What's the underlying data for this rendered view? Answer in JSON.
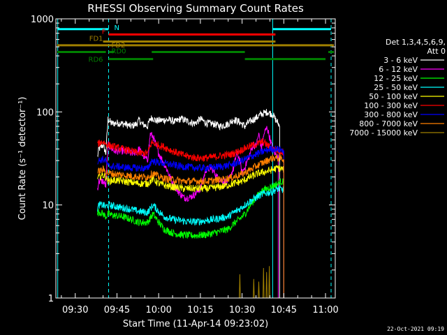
{
  "chart_data": {
    "type": "line",
    "title": "RHESSI Observing Summary Count Rates",
    "xlabel": "Start Time (11-Apr-14 09:23:02)",
    "ylabel": "Count Rate (s⁻¹ detector⁻¹)",
    "x_start_time": "09:23:02",
    "x_ticks": [
      "09:30",
      "09:45",
      "10:00",
      "10:15",
      "10:30",
      "10:45",
      "11:00"
    ],
    "x_tick_minutes": [
      570,
      585,
      600,
      615,
      630,
      645,
      660
    ],
    "xlim_minutes": [
      563.03,
      663.5
    ],
    "ylim": [
      1,
      1000
    ],
    "y_scale": "log",
    "y_ticks": [
      "1",
      "10",
      "100",
      "1000"
    ],
    "y_tick_values": [
      1,
      10,
      100,
      1000
    ],
    "legend": {
      "title_line1": "Det 1,3,4,5,6,9,",
      "title_line2": "Att 0",
      "placement": "right"
    },
    "series": [
      {
        "name": "3 - 6 keV",
        "color": "#ffffff",
        "points": [
          [
            578,
            33
          ],
          [
            578.5,
            40
          ],
          [
            580,
            44
          ],
          [
            581,
            36
          ],
          [
            581.8,
            84
          ],
          [
            583,
            75
          ],
          [
            585,
            76
          ],
          [
            588,
            74
          ],
          [
            590,
            70
          ],
          [
            592,
            74
          ],
          [
            593,
            82
          ],
          [
            594,
            74
          ],
          [
            596,
            70
          ],
          [
            597,
            85
          ],
          [
            598,
            86
          ],
          [
            599,
            80
          ],
          [
            602,
            82
          ],
          [
            604,
            82
          ],
          [
            606,
            78
          ],
          [
            608,
            85
          ],
          [
            610,
            80
          ],
          [
            613,
            75
          ],
          [
            615,
            84
          ],
          [
            617,
            76
          ],
          [
            620,
            74
          ],
          [
            622,
            70
          ],
          [
            625,
            74
          ],
          [
            627,
            83
          ],
          [
            629,
            78
          ],
          [
            631,
            70
          ],
          [
            632,
            76
          ],
          [
            635,
            86
          ],
          [
            636.5,
            93
          ],
          [
            639,
            100
          ],
          [
            640,
            97
          ],
          [
            641,
            94
          ],
          [
            642,
            83
          ],
          [
            643,
            75
          ],
          [
            643.5,
            70
          ]
        ]
      },
      {
        "name": "6 - 12 keV",
        "color": "#ff00ff",
        "points": [
          [
            578,
            15
          ],
          [
            578.5,
            18
          ],
          [
            580,
            18
          ],
          [
            581,
            16
          ],
          [
            581.8,
            44
          ],
          [
            584,
            38
          ],
          [
            587,
            38
          ],
          [
            590,
            36
          ],
          [
            592,
            37
          ],
          [
            593,
            40
          ],
          [
            594,
            35
          ],
          [
            596,
            30
          ],
          [
            597,
            58
          ],
          [
            598,
            54
          ],
          [
            600,
            36
          ],
          [
            603,
            24
          ],
          [
            605,
            17
          ],
          [
            607,
            14
          ],
          [
            609,
            12
          ],
          [
            611,
            12
          ],
          [
            613,
            13
          ],
          [
            615,
            15
          ],
          [
            617,
            24
          ],
          [
            619,
            25
          ],
          [
            621,
            20
          ],
          [
            623,
            18
          ],
          [
            625,
            18
          ],
          [
            627,
            25
          ],
          [
            628,
            36
          ],
          [
            629,
            32
          ],
          [
            630,
            22
          ],
          [
            632,
            30
          ],
          [
            634,
            45
          ],
          [
            635,
            42
          ],
          [
            636,
            58
          ],
          [
            637,
            40
          ],
          [
            638,
            60
          ],
          [
            639,
            68
          ],
          [
            640,
            52
          ],
          [
            641,
            40
          ],
          [
            642,
            35
          ],
          [
            643,
            33
          ]
        ]
      },
      {
        "name": "12 - 25 keV",
        "color": "#00ff00",
        "points": [
          [
            578,
            8
          ],
          [
            578.5,
            8.5
          ],
          [
            580,
            8
          ],
          [
            581,
            7.5
          ],
          [
            581.8,
            8
          ],
          [
            584,
            7.7
          ],
          [
            587,
            7.5
          ],
          [
            590,
            7
          ],
          [
            593,
            6.5
          ],
          [
            596,
            6.5
          ],
          [
            598,
            8
          ],
          [
            600,
            6.5
          ],
          [
            602,
            5.5
          ],
          [
            605,
            5
          ],
          [
            608,
            4.8
          ],
          [
            611,
            4.7
          ],
          [
            614,
            4.7
          ],
          [
            617,
            4.8
          ],
          [
            620,
            5
          ],
          [
            623,
            5.3
          ],
          [
            625,
            5.5
          ],
          [
            627,
            6.3
          ],
          [
            629,
            7
          ],
          [
            631,
            8
          ],
          [
            633,
            10
          ],
          [
            635,
            12
          ],
          [
            637,
            14
          ],
          [
            639,
            15
          ],
          [
            641,
            16
          ],
          [
            643,
            17
          ],
          [
            644,
            18
          ],
          [
            645,
            17.5
          ]
        ]
      },
      {
        "name": "25 - 50 keV",
        "color": "#00ffff",
        "points": [
          [
            578,
            9
          ],
          [
            578.5,
            10
          ],
          [
            580,
            10
          ],
          [
            581,
            9.5
          ],
          [
            581.8,
            10
          ],
          [
            584,
            9.7
          ],
          [
            587,
            9.3
          ],
          [
            590,
            9
          ],
          [
            593,
            8.5
          ],
          [
            596,
            8.3
          ],
          [
            598,
            10
          ],
          [
            600,
            8.5
          ],
          [
            602,
            7.5
          ],
          [
            605,
            7
          ],
          [
            608,
            6.8
          ],
          [
            611,
            6.6
          ],
          [
            614,
            6.6
          ],
          [
            617,
            6.8
          ],
          [
            620,
            7
          ],
          [
            623,
            7.3
          ],
          [
            625,
            7.5
          ],
          [
            627,
            8.3
          ],
          [
            629,
            9
          ],
          [
            631,
            10
          ],
          [
            633,
            11
          ],
          [
            635,
            12
          ],
          [
            637,
            13
          ],
          [
            639,
            13.5
          ],
          [
            641,
            14
          ],
          [
            643,
            15
          ],
          [
            645,
            14.5
          ]
        ]
      },
      {
        "name": "50 - 100 keV",
        "color": "#ffff00",
        "points": [
          [
            578,
            19
          ],
          [
            578.5,
            20
          ],
          [
            580,
            21
          ],
          [
            581,
            20
          ],
          [
            581.8,
            18
          ],
          [
            584,
            18.5
          ],
          [
            587,
            18
          ],
          [
            590,
            17.5
          ],
          [
            593,
            17
          ],
          [
            596,
            17
          ],
          [
            598,
            19
          ],
          [
            600,
            17
          ],
          [
            603,
            16
          ],
          [
            606,
            15.5
          ],
          [
            609,
            15
          ],
          [
            612,
            15
          ],
          [
            615,
            15
          ],
          [
            618,
            15
          ],
          [
            621,
            15.5
          ],
          [
            624,
            16
          ],
          [
            627,
            17
          ],
          [
            630,
            18
          ],
          [
            633,
            20
          ],
          [
            636,
            22
          ],
          [
            639,
            23
          ],
          [
            641,
            24
          ],
          [
            643,
            25
          ],
          [
            645,
            24
          ]
        ]
      },
      {
        "name": "100 - 300 keV",
        "color": "#ff0000",
        "points": [
          [
            578,
            44
          ],
          [
            578.5,
            46
          ],
          [
            580,
            48
          ],
          [
            581,
            45
          ],
          [
            581.8,
            44
          ],
          [
            584,
            42
          ],
          [
            587,
            40
          ],
          [
            590,
            38
          ],
          [
            593,
            36
          ],
          [
            596,
            36
          ],
          [
            597.5,
            47
          ],
          [
            599,
            45
          ],
          [
            602,
            42
          ],
          [
            605,
            38
          ],
          [
            608,
            35
          ],
          [
            611,
            33
          ],
          [
            614,
            32
          ],
          [
            617,
            32
          ],
          [
            620,
            33
          ],
          [
            623,
            34
          ],
          [
            626,
            35
          ],
          [
            629,
            38
          ],
          [
            632,
            42
          ],
          [
            634,
            44
          ],
          [
            636,
            46
          ],
          [
            637.5,
            48
          ],
          [
            639,
            44
          ],
          [
            641,
            40
          ],
          [
            643,
            38
          ],
          [
            645,
            37
          ]
        ]
      },
      {
        "name": "300 - 800 keV",
        "color": "#0000ff",
        "points": [
          [
            578,
            29
          ],
          [
            578.5,
            30
          ],
          [
            580,
            31
          ],
          [
            581,
            30
          ],
          [
            581.8,
            26
          ],
          [
            584,
            26
          ],
          [
            587,
            25.5
          ],
          [
            590,
            25
          ],
          [
            593,
            25
          ],
          [
            596,
            24.5
          ],
          [
            597.5,
            30
          ],
          [
            599,
            29
          ],
          [
            602,
            28
          ],
          [
            605,
            27
          ],
          [
            608,
            26
          ],
          [
            611,
            25.5
          ],
          [
            614,
            25
          ],
          [
            617,
            25
          ],
          [
            620,
            25.5
          ],
          [
            623,
            26
          ],
          [
            626,
            27
          ],
          [
            629,
            29
          ],
          [
            632,
            32
          ],
          [
            635,
            35
          ],
          [
            638,
            38
          ],
          [
            640,
            40
          ],
          [
            642,
            40
          ],
          [
            644,
            39
          ],
          [
            645,
            38
          ]
        ]
      },
      {
        "name": "800 - 7000 keV",
        "color": "#ff8000",
        "points": [
          [
            578,
            22
          ],
          [
            578.5,
            23
          ],
          [
            580,
            24
          ],
          [
            581,
            23
          ],
          [
            581.8,
            22
          ],
          [
            584,
            21.5
          ],
          [
            587,
            21
          ],
          [
            590,
            20.5
          ],
          [
            593,
            20
          ],
          [
            596,
            20
          ],
          [
            598,
            22
          ],
          [
            600,
            20
          ],
          [
            603,
            19
          ],
          [
            606,
            18.5
          ],
          [
            609,
            18
          ],
          [
            612,
            18
          ],
          [
            615,
            18
          ],
          [
            618,
            18
          ],
          [
            621,
            18.5
          ],
          [
            624,
            19
          ],
          [
            627,
            20
          ],
          [
            630,
            21.5
          ],
          [
            633,
            24
          ],
          [
            636,
            27
          ],
          [
            639,
            30
          ],
          [
            641,
            32
          ],
          [
            643,
            32
          ],
          [
            645,
            31
          ]
        ]
      },
      {
        "name": "7000 - 15000 keV",
        "color": "#a08000",
        "points": [
          [
            629,
            1
          ],
          [
            629.2,
            1.8
          ],
          [
            629.4,
            1
          ],
          [
            634,
            1
          ],
          [
            634.2,
            1.6
          ],
          [
            634.4,
            1
          ],
          [
            635.8,
            1
          ],
          [
            636,
            1.5
          ],
          [
            636.2,
            1
          ],
          [
            637.5,
            1
          ],
          [
            637.7,
            2.1
          ],
          [
            637.9,
            1
          ],
          [
            638.6,
            1
          ],
          [
            638.8,
            1.9
          ],
          [
            639,
            1
          ],
          [
            639.6,
            1
          ],
          [
            639.8,
            2.2
          ],
          [
            640,
            1
          ]
        ]
      }
    ],
    "flags": [
      {
        "name": "N",
        "label": "N",
        "color": "#00ffff",
        "y": 775,
        "segments": [
          [
            563.5,
            582
          ],
          [
            641,
            662
          ]
        ]
      },
      {
        "name": "F",
        "label": "F",
        "color": "#ff0000",
        "y": 680,
        "segments": [
          [
            582,
            642
          ]
        ]
      },
      {
        "name": "FD1",
        "label": "FD1",
        "color": "#a08000",
        "y": 570,
        "segments": [
          [
            580,
            642
          ]
        ]
      },
      {
        "name": "FD2",
        "label": "FD2",
        "color": "#a08000",
        "y": 520,
        "segments": [
          [
            563.5,
            663
          ]
        ]
      },
      {
        "name": "RD0",
        "label": "RD0",
        "color": "#008000",
        "y": 440,
        "segments": [
          [
            563.5,
            581
          ],
          [
            582,
            584
          ],
          [
            597.5,
            631
          ],
          [
            661,
            663
          ]
        ]
      },
      {
        "name": "RD6",
        "label": "RD6",
        "color": "#008000",
        "y": 370,
        "segments": [
          [
            582,
            598
          ],
          [
            631,
            660
          ]
        ]
      }
    ],
    "vertical_lines": [
      {
        "minute": 563.7,
        "color": "#00ffff",
        "style": "solid"
      },
      {
        "minute": 582,
        "color": "#00ffff",
        "style": "dashed"
      },
      {
        "minute": 641,
        "color": "#00ffff",
        "style": "solid"
      },
      {
        "minute": 662,
        "color": "#00ffff",
        "style": "dashed"
      }
    ],
    "grid": false
  },
  "footer": {
    "timestamp": "22-Oct-2021 09:19"
  }
}
